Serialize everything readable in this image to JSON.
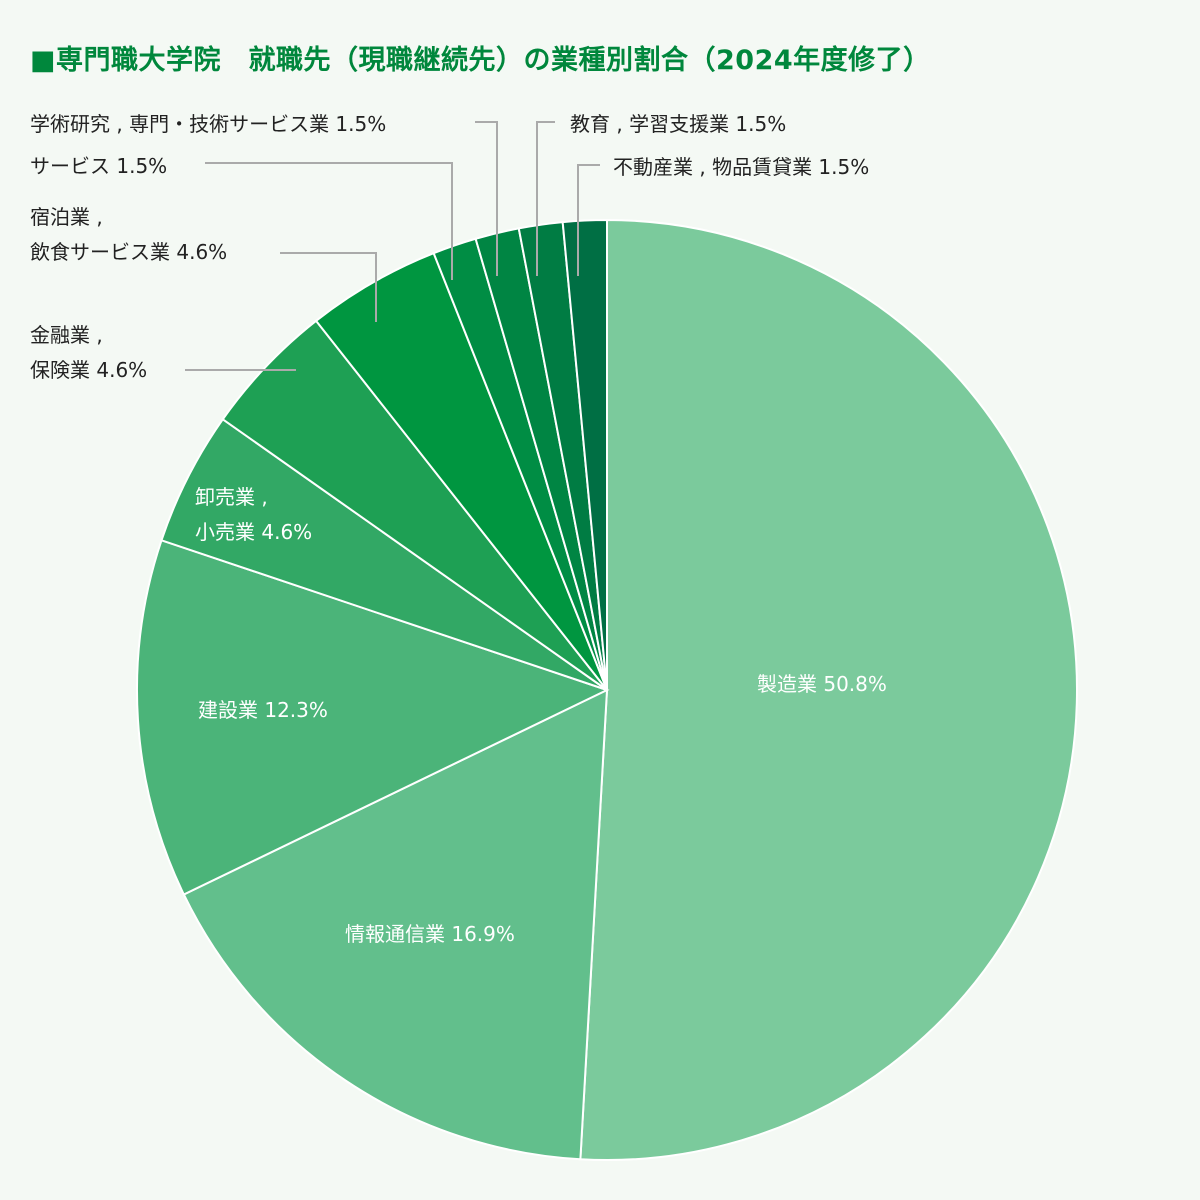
{
  "chart_data": {
    "type": "pie",
    "title": "■専門職大学院　就職先（現職継続先）の業種別割合（2024年度修了）",
    "categories": [
      "製造業",
      "情報通信業",
      "建設業",
      "卸売業 , 小売業",
      "金融業 , 保険業",
      "宿泊業 , 飲食サービス業",
      "サービス",
      "学術研究 , 専門・技術サービス業",
      "教育 , 学習支援業",
      "不動産業 , 物品賃貸業"
    ],
    "values": [
      50.8,
      16.9,
      12.3,
      4.6,
      4.6,
      4.6,
      1.5,
      1.5,
      1.5,
      1.5
    ],
    "unit": "%",
    "colors": [
      "#7bca9c",
      "#62bf8c",
      "#4bb479",
      "#32a865",
      "#1ea054",
      "#009640",
      "#008d44",
      "#008543",
      "#007c43",
      "#006f44"
    ],
    "start": "top",
    "direction": "clockwise",
    "legend": "none"
  }
}
